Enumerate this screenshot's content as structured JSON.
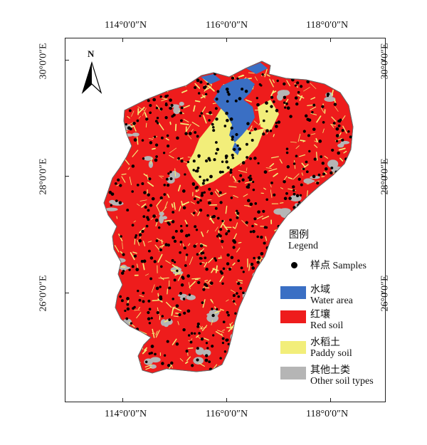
{
  "map": {
    "top_axis_labels": [
      "114°0′0″N",
      "116°0′0″N",
      "118°0′0″N"
    ],
    "bottom_axis_labels": [
      "114°0′0″N",
      "116°0′0″N",
      "118°0′0″N"
    ],
    "left_axis_labels": [
      "30°0′0″E",
      "28°0′0″E",
      "26°0′0″E"
    ],
    "right_axis_labels": [
      "30°0′0″E",
      "28°0′0″E",
      "26°0′0″E"
    ],
    "north_label": "N"
  },
  "legend": {
    "title_zh": "图例",
    "title_en": "Legend",
    "samples_label": "样点 Samples",
    "items": [
      {
        "zh": "水域",
        "en": "Water area",
        "color": "#3a6fc4"
      },
      {
        "zh": "红壤",
        "en": "Red soil",
        "color": "#ee1c1c"
      },
      {
        "zh": "水稻土",
        "en": "Paddy soil",
        "color": "#f2ee7a"
      },
      {
        "zh": "其他土类",
        "en": "Other soil types",
        "color": "#b5b5b5"
      }
    ]
  }
}
